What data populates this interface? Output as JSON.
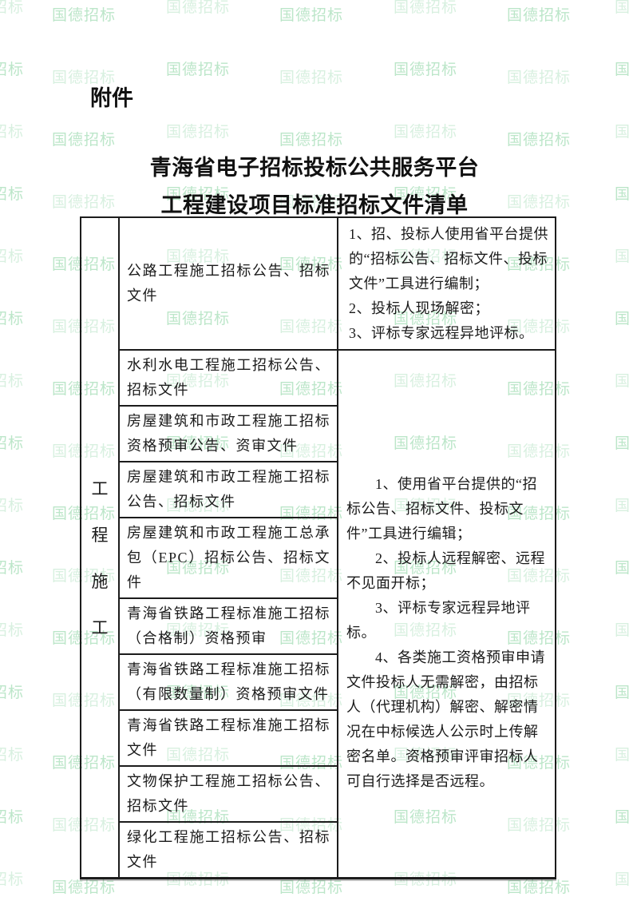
{
  "page": {
    "attachment_label": "附件",
    "title_line1": "青海省电子招标投标公共服务平台",
    "title_line2": "工程建设项目标准招标文件清单"
  },
  "watermark": {
    "text": "国德招标",
    "color": "#b9e5c7"
  },
  "table": {
    "category": "工程施工",
    "rows": [
      "公路工程施工招标公告、招标文件",
      "水利水电工程施工招标公告、招标文件",
      "房屋建筑和市政工程施工招标资格预审公告、资审文件",
      "房屋建筑和市政工程施工招标公告、招标文件",
      "房屋建筑和市政工程施工总承包（EPC）招标公告、招标文件",
      "青海省铁路工程标准施工招标（合格制）资格预审",
      "青海省铁路工程标准施工招标（有限数量制）资格预审文件",
      "青海省铁路工程标准施工招标文件",
      "文物保护工程施工招标公告、招标文件",
      "绿化工程施工招标公告、招标文件"
    ],
    "row1_notes": [
      "1、招、投标人使用省平台提供的“招标公告、招标文件、投标文件”工具进行编制；",
      "2、投标人现场解密；",
      "3、评标专家远程异地评标。"
    ],
    "merged_notes": [
      "1、使用省平台提供的“招标公告、招标文件、投标文件”工具进行编辑；",
      "2、投标人远程解密、远程不见面开标；",
      "3、评标专家远程异地评标。",
      "4、各类施工资格预审申请文件投标人无需解密，由招标人（代理机构）解密、解密情况在中标候选人公示时上传解密名单。资格预审评审招标人可自行选择是否远程。"
    ]
  }
}
